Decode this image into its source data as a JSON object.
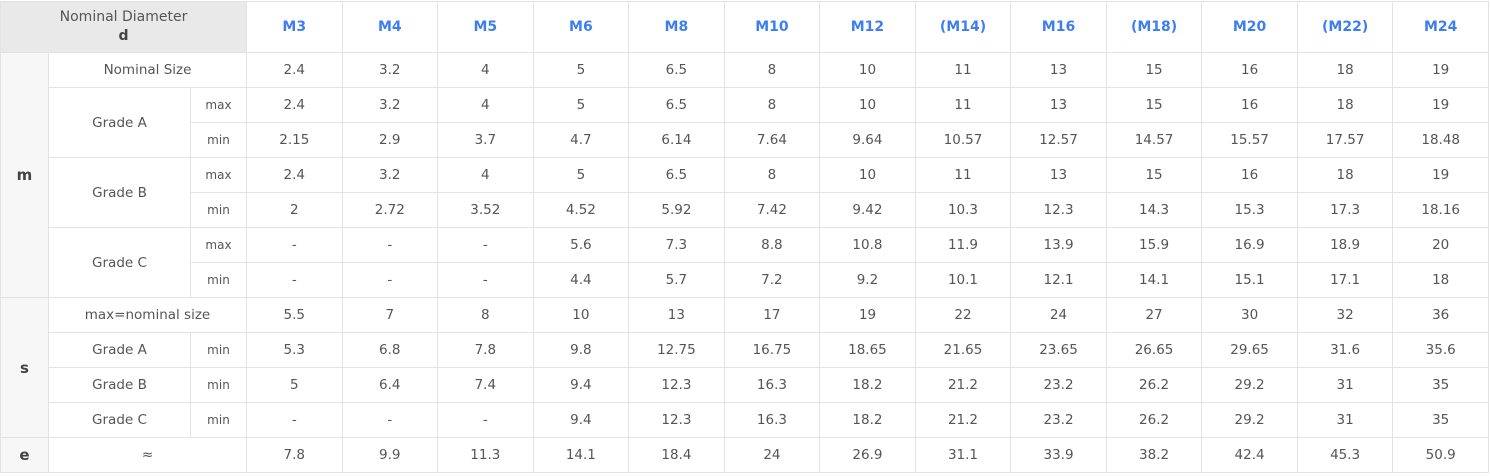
{
  "table": {
    "corner": {
      "title": "Nominal Diameter",
      "symbol": "d"
    },
    "columns": [
      "M3",
      "M4",
      "M5",
      "M6",
      "M8",
      "M10",
      "M12",
      "(M14)",
      "M16",
      "(M18)",
      "M20",
      "(M22)",
      "M24"
    ],
    "groups": [
      {
        "label": "m",
        "subgroups": [
          {
            "label": "Nominal Size",
            "rows": [
              {
                "values": [
                  "2.4",
                  "3.2",
                  "4",
                  "5",
                  "6.5",
                  "8",
                  "10",
                  "11",
                  "13",
                  "15",
                  "16",
                  "18",
                  "19"
                ]
              }
            ]
          },
          {
            "label": "Grade A",
            "rows": [
              {
                "qualifier": "max",
                "values": [
                  "2.4",
                  "3.2",
                  "4",
                  "5",
                  "6.5",
                  "8",
                  "10",
                  "11",
                  "13",
                  "15",
                  "16",
                  "18",
                  "19"
                ]
              },
              {
                "qualifier": "min",
                "values": [
                  "2.15",
                  "2.9",
                  "3.7",
                  "4.7",
                  "6.14",
                  "7.64",
                  "9.64",
                  "10.57",
                  "12.57",
                  "14.57",
                  "15.57",
                  "17.57",
                  "18.48"
                ]
              }
            ]
          },
          {
            "label": "Grade B",
            "rows": [
              {
                "qualifier": "max",
                "values": [
                  "2.4",
                  "3.2",
                  "4",
                  "5",
                  "6.5",
                  "8",
                  "10",
                  "11",
                  "13",
                  "15",
                  "16",
                  "18",
                  "19"
                ]
              },
              {
                "qualifier": "min",
                "values": [
                  "2",
                  "2.72",
                  "3.52",
                  "4.52",
                  "5.92",
                  "7.42",
                  "9.42",
                  "10.3",
                  "12.3",
                  "14.3",
                  "15.3",
                  "17.3",
                  "18.16"
                ]
              }
            ]
          },
          {
            "label": "Grade C",
            "rows": [
              {
                "qualifier": "max",
                "values": [
                  "-",
                  "-",
                  "-",
                  "5.6",
                  "7.3",
                  "8.8",
                  "10.8",
                  "11.9",
                  "13.9",
                  "15.9",
                  "16.9",
                  "18.9",
                  "20"
                ]
              },
              {
                "qualifier": "min",
                "values": [
                  "-",
                  "-",
                  "-",
                  "4.4",
                  "5.7",
                  "7.2",
                  "9.2",
                  "10.1",
                  "12.1",
                  "14.1",
                  "15.1",
                  "17.1",
                  "18"
                ]
              }
            ]
          }
        ]
      },
      {
        "label": "s",
        "subgroups": [
          {
            "label": "max=nominal size",
            "rows": [
              {
                "values": [
                  "5.5",
                  "7",
                  "8",
                  "10",
                  "13",
                  "17",
                  "19",
                  "22",
                  "24",
                  "27",
                  "30",
                  "32",
                  "36"
                ]
              }
            ]
          },
          {
            "label": "Grade A",
            "rows": [
              {
                "qualifier": "min",
                "values": [
                  "5.3",
                  "6.8",
                  "7.8",
                  "9.8",
                  "12.75",
                  "16.75",
                  "18.65",
                  "21.65",
                  "23.65",
                  "26.65",
                  "29.65",
                  "31.6",
                  "35.6"
                ]
              }
            ]
          },
          {
            "label": "Grade B",
            "rows": [
              {
                "qualifier": "min",
                "values": [
                  "5",
                  "6.4",
                  "7.4",
                  "9.4",
                  "12.3",
                  "16.3",
                  "18.2",
                  "21.2",
                  "23.2",
                  "26.2",
                  "29.2",
                  "31",
                  "35"
                ]
              }
            ]
          },
          {
            "label": "Grade C",
            "rows": [
              {
                "qualifier": "min",
                "values": [
                  "-",
                  "-",
                  "-",
                  "9.4",
                  "12.3",
                  "16.3",
                  "18.2",
                  "21.2",
                  "23.2",
                  "26.2",
                  "29.2",
                  "31",
                  "35"
                ]
              }
            ]
          }
        ]
      },
      {
        "label": "e",
        "subgroups": [
          {
            "label": "≈",
            "rows": [
              {
                "values": [
                  "7.8",
                  "9.9",
                  "11.3",
                  "14.1",
                  "18.4",
                  "24",
                  "26.9",
                  "31.1",
                  "33.9",
                  "38.2",
                  "42.4",
                  "45.3",
                  "50.9"
                ]
              }
            ]
          }
        ]
      }
    ]
  }
}
